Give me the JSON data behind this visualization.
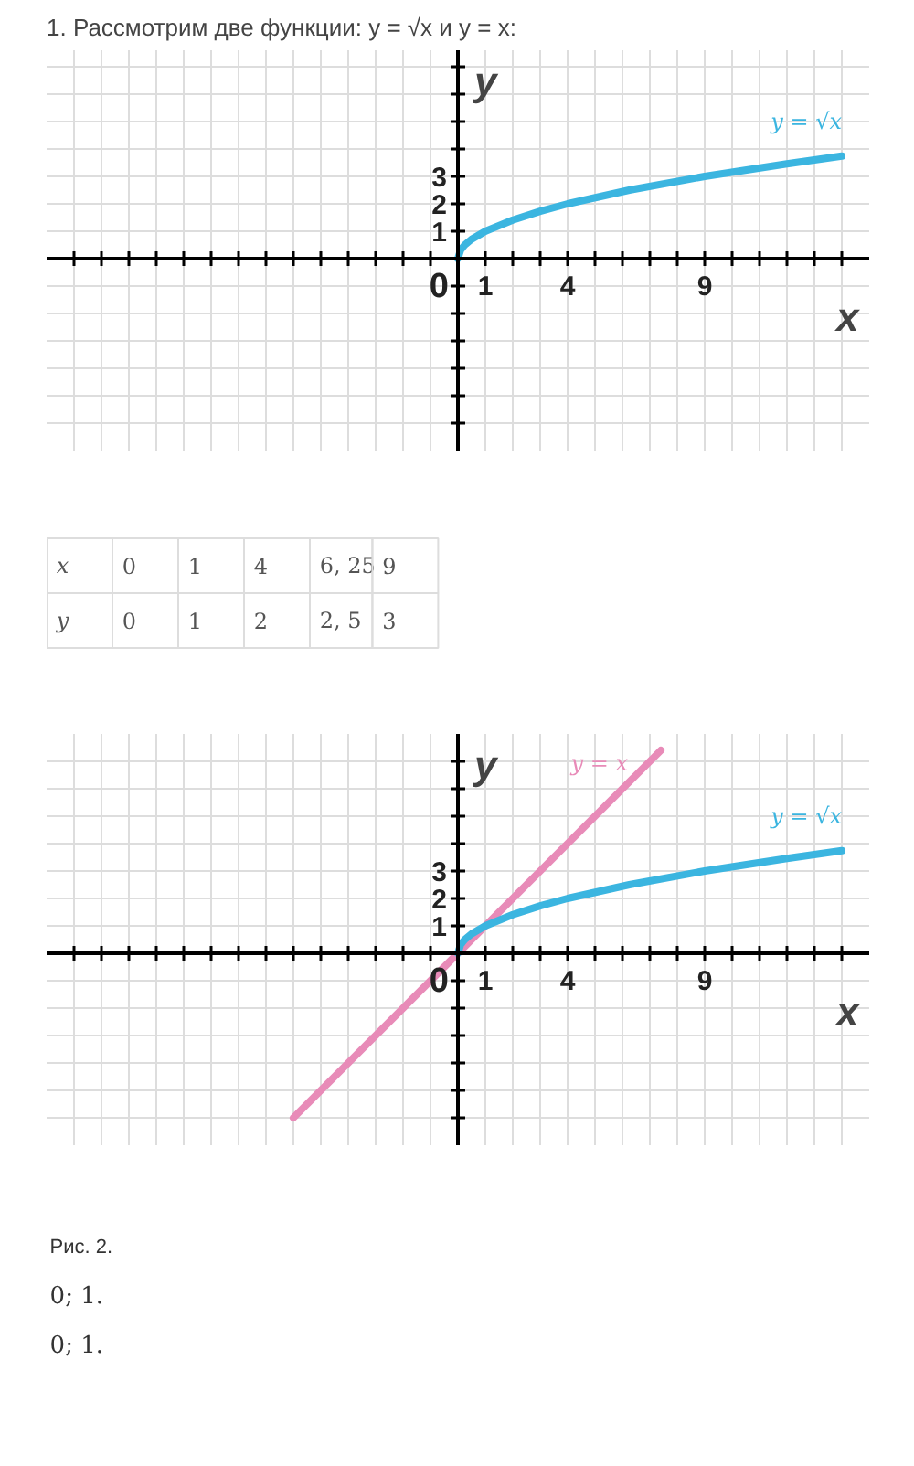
{
  "chart_data": [
    {
      "type": "line",
      "title": "1. Рассмотрим две функции: y = √x и y = x:",
      "xlabel": "x",
      "ylabel": "y",
      "series": [
        {
          "name": "y = √x",
          "color": "#3bb5e0",
          "x": [
            0,
            0.1,
            0.25,
            0.5,
            1,
            2,
            3,
            4,
            6.25,
            9,
            12,
            14
          ],
          "values": [
            0,
            0.32,
            0.5,
            0.71,
            1,
            1.41,
            1.73,
            2,
            2.5,
            3,
            3.46,
            3.74
          ]
        }
      ],
      "xlim": [
        -15,
        15
      ],
      "ylim": [
        -7,
        7.6
      ],
      "xticks": [
        {
          "value": -14,
          "label": null
        },
        {
          "value": -13,
          "label": null
        },
        {
          "value": -12,
          "label": null
        },
        {
          "value": -11,
          "label": null
        },
        {
          "value": -10,
          "label": null
        },
        {
          "value": -9,
          "label": null
        },
        {
          "value": -8,
          "label": null
        },
        {
          "value": -7,
          "label": null
        },
        {
          "value": -6,
          "label": null
        },
        {
          "value": -5,
          "label": null
        },
        {
          "value": -4,
          "label": null
        },
        {
          "value": -3,
          "label": null
        },
        {
          "value": -2,
          "label": null
        },
        {
          "value": -1,
          "label": null
        },
        0,
        1,
        {
          "value": 2,
          "label": null
        },
        {
          "value": 3,
          "label": null
        },
        4,
        {
          "value": 5,
          "label": null
        },
        {
          "value": 6,
          "label": null
        },
        {
          "value": 7,
          "label": null
        },
        {
          "value": 8,
          "label": null
        },
        9,
        {
          "value": 10,
          "label": null
        },
        {
          "value": 11,
          "label": null
        },
        {
          "value": 12,
          "label": null
        },
        {
          "value": 13,
          "label": null
        },
        {
          "value": 14,
          "label": null
        }
      ],
      "yticks": [
        {
          "value": -6,
          "label": null
        },
        {
          "value": -5,
          "label": null
        },
        {
          "value": -4,
          "label": null
        },
        {
          "value": -3,
          "label": null
        },
        {
          "value": -2,
          "label": null
        },
        {
          "value": -1,
          "label": null
        },
        1,
        2,
        3,
        {
          "value": 4,
          "label": null
        },
        {
          "value": 5,
          "label": null
        },
        {
          "value": 6,
          "label": null
        },
        {
          "value": 7,
          "label": null
        }
      ],
      "grid": true
    },
    {
      "type": "other",
      "annotations": [
        "x",
        "0",
        "1",
        "4",
        "6, 25",
        "9",
        "y",
        "0",
        "1",
        "2",
        "2, 5",
        "3"
      ]
    },
    {
      "type": "line",
      "xlabel": "x",
      "ylabel": "y",
      "series": [
        {
          "name": "y = x",
          "color": "#e88bb8",
          "x": [
            -6,
            7.4
          ],
          "values": [
            -6,
            7.4
          ]
        },
        {
          "name": "y = √x",
          "color": "#3bb5e0",
          "x": [
            0,
            0.1,
            0.25,
            0.5,
            1,
            2,
            3,
            4,
            6.25,
            9,
            12,
            14
          ],
          "values": [
            0,
            0.32,
            0.5,
            0.71,
            1,
            1.41,
            1.73,
            2,
            2.5,
            3,
            3.46,
            3.74
          ]
        }
      ],
      "xlim": [
        -15,
        15
      ],
      "ylim": [
        -7,
        8
      ],
      "xticks": [
        {
          "value": -14,
          "label": null
        },
        {
          "value": -13,
          "label": null
        },
        {
          "value": -12,
          "label": null
        },
        {
          "value": -11,
          "label": null
        },
        {
          "value": -10,
          "label": null
        },
        {
          "value": -9,
          "label": null
        },
        {
          "value": -8,
          "label": null
        },
        {
          "value": -7,
          "label": null
        },
        {
          "value": -6,
          "label": null
        },
        {
          "value": -5,
          "label": null
        },
        {
          "value": -4,
          "label": null
        },
        {
          "value": -3,
          "label": null
        },
        {
          "value": -2,
          "label": null
        },
        {
          "value": -1,
          "label": null
        },
        0,
        1,
        {
          "value": 2,
          "label": null
        },
        {
          "value": 3,
          "label": null
        },
        4,
        {
          "value": 5,
          "label": null
        },
        {
          "value": 6,
          "label": null
        },
        {
          "value": 7,
          "label": null
        },
        {
          "value": 8,
          "label": null
        },
        9,
        {
          "value": 10,
          "label": null
        },
        {
          "value": 11,
          "label": null
        },
        {
          "value": 12,
          "label": null
        },
        {
          "value": 13,
          "label": null
        },
        {
          "value": 14,
          "label": null
        }
      ],
      "yticks": [
        {
          "value": -6,
          "label": null
        },
        {
          "value": -5,
          "label": null
        },
        {
          "value": -4,
          "label": null
        },
        {
          "value": -3,
          "label": null
        },
        {
          "value": -2,
          "label": null
        },
        {
          "value": -1,
          "label": null
        },
        1,
        2,
        3,
        {
          "value": 4,
          "label": null
        },
        {
          "value": 5,
          "label": null
        },
        {
          "value": 6,
          "label": null
        },
        {
          "value": 7,
          "label": null
        }
      ],
      "grid": true
    },
    {
      "type": "other",
      "annotations": [
        "Рис. 2.",
        "0; 1.",
        "0; 1."
      ]
    }
  ]
}
